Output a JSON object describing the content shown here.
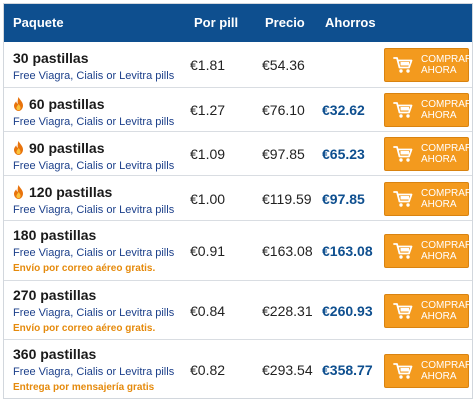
{
  "header": {
    "package": "Paquete",
    "per_pill": "Por pill",
    "price": "Precio",
    "savings": "Ahorros"
  },
  "buy_label_1": "COMPRAR",
  "buy_label_2": "AHORA",
  "rows": [
    {
      "package": "30 pastillas",
      "hot": false,
      "sub": "Free Viagra, Cialis or Levitra pills",
      "note": "",
      "per_pill": "€1.81",
      "price": "€54.36",
      "savings": ""
    },
    {
      "package": "60 pastillas",
      "hot": true,
      "sub": "Free Viagra, Cialis or Levitra pills",
      "note": "",
      "per_pill": "€1.27",
      "price": "€76.10",
      "savings": "€32.62"
    },
    {
      "package": "90 pastillas",
      "hot": true,
      "sub": "Free Viagra, Cialis or Levitra pills",
      "note": "",
      "per_pill": "€1.09",
      "price": "€97.85",
      "savings": "€65.23"
    },
    {
      "package": "120 pastillas",
      "hot": true,
      "sub": "Free Viagra, Cialis or Levitra pills",
      "note": "",
      "per_pill": "€1.00",
      "price": "€119.59",
      "savings": "€97.85"
    },
    {
      "package": "180 pastillas",
      "hot": false,
      "sub": "Free Viagra, Cialis or Levitra pills",
      "note": "Envío por correo aéreo gratis.",
      "per_pill": "€0.91",
      "price": "€163.08",
      "savings": "€163.08"
    },
    {
      "package": "270 pastillas",
      "hot": false,
      "sub": "Free Viagra, Cialis or Levitra pills",
      "note": "Envío por correo aéreo gratis.",
      "per_pill": "€0.84",
      "price": "€228.31",
      "savings": "€260.93"
    },
    {
      "package": "360 pastillas",
      "hot": false,
      "sub": "Free Viagra, Cialis or Levitra pills",
      "note": "Entrega por mensajería gratis",
      "per_pill": "€0.82",
      "price": "€293.54",
      "savings": "€358.77"
    }
  ],
  "colors": {
    "header_bg": "#0e4f8f",
    "button_bg": "#f39a1e",
    "savings_text": "#0e4f8f",
    "note_text": "#e58a0c"
  },
  "icons": {
    "hot": "fire-icon",
    "cart": "cart-icon"
  }
}
